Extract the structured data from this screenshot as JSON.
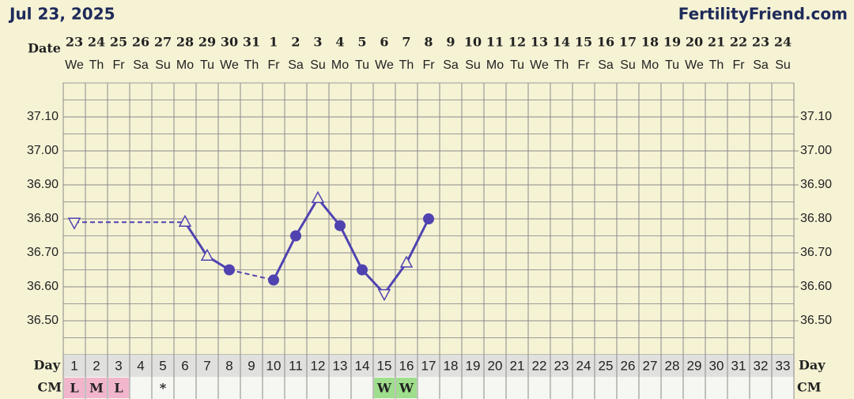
{
  "header": {
    "date": "Jul 23, 2025",
    "site": "FertilityFriend.com"
  },
  "chart_data": {
    "type": "line",
    "date_label": "Date",
    "day_label": "Day",
    "cm_label": "CM",
    "dates": [
      "23",
      "24",
      "25",
      "26",
      "27",
      "28",
      "29",
      "30",
      "31",
      "1",
      "2",
      "3",
      "4",
      "5",
      "6",
      "7",
      "8",
      "9",
      "10",
      "11",
      "12",
      "13",
      "14",
      "15",
      "16",
      "17",
      "18",
      "19",
      "20",
      "21",
      "22",
      "23",
      "24"
    ],
    "weekdays": [
      "We",
      "Th",
      "Fr",
      "Sa",
      "Su",
      "Mo",
      "Tu",
      "We",
      "Th",
      "Fr",
      "Sa",
      "Su",
      "Mo",
      "Tu",
      "We",
      "Th",
      "Fr",
      "Sa",
      "Su",
      "Mo",
      "Tu",
      "We",
      "Th",
      "Fr",
      "Sa",
      "Su",
      "Mo",
      "Tu",
      "We",
      "Th",
      "Fr",
      "Sa",
      "Su"
    ],
    "categories": [
      1,
      2,
      3,
      4,
      5,
      6,
      7,
      8,
      9,
      10,
      11,
      12,
      13,
      14,
      15,
      16,
      17,
      18,
      19,
      20,
      21,
      22,
      23,
      24,
      25,
      26,
      27,
      28,
      29,
      30,
      31,
      32,
      33
    ],
    "series": [
      {
        "name": "Temperature",
        "color": "#5043b0",
        "values": [
          36.79,
          null,
          null,
          null,
          null,
          36.79,
          36.69,
          36.65,
          null,
          36.62,
          36.75,
          36.86,
          36.78,
          36.65,
          36.58,
          36.67,
          36.8,
          null,
          null,
          null,
          null,
          null,
          null,
          null,
          null,
          null,
          null,
          null,
          null,
          null,
          null,
          null,
          null
        ],
        "markers": [
          "open-down",
          null,
          null,
          null,
          null,
          "open-up",
          "open-up",
          "filled",
          null,
          "filled",
          "filled",
          "open-up",
          "filled",
          "filled",
          "open-down",
          "open-up",
          "filled",
          null,
          null,
          null,
          null,
          null,
          null,
          null,
          null,
          null,
          null,
          null,
          null,
          null,
          null,
          null,
          null
        ]
      }
    ],
    "cm": [
      {
        "label": "L",
        "color": "#f2b6cc"
      },
      {
        "label": "M",
        "color": "#f2b6cc"
      },
      {
        "label": "L",
        "color": "#f2b6cc"
      },
      null,
      {
        "label": "*",
        "color": null
      },
      null,
      null,
      null,
      null,
      null,
      null,
      null,
      null,
      null,
      {
        "label": "W",
        "color": "#9ede8c"
      },
      {
        "label": "W",
        "color": "#9ede8c"
      },
      null,
      null,
      null,
      null,
      null,
      null,
      null,
      null,
      null,
      null,
      null,
      null,
      null,
      null,
      null,
      null,
      null
    ],
    "ylim": [
      36.4,
      37.2
    ],
    "yticks": [
      {
        "value": 36.5,
        "label": "36.50"
      },
      {
        "value": 36.6,
        "label": "36.60"
      },
      {
        "value": 36.7,
        "label": "36.70"
      },
      {
        "value": 36.8,
        "label": "36.80"
      },
      {
        "value": 36.9,
        "label": "36.90"
      },
      {
        "value": 37.0,
        "label": "37.00"
      },
      {
        "value": 37.1,
        "label": "37.10"
      }
    ],
    "grid": true
  }
}
